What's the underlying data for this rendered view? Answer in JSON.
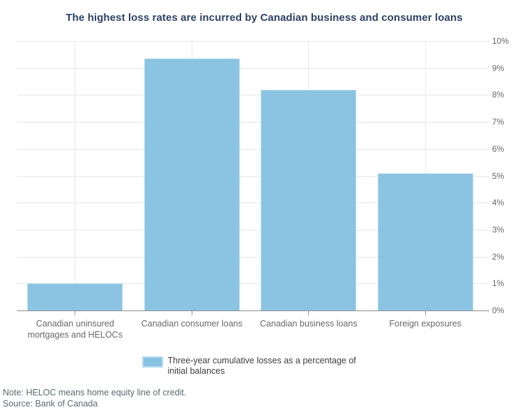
{
  "title": "The highest loss rates are incurred by Canadian business and consumer loans",
  "chart_data": {
    "type": "bar",
    "title": "The highest loss rates are incurred by Canadian business and consumer loans",
    "categories": [
      "Canadian uninsured mortgages and HELOCs",
      "Canadian consumer loans",
      "Canadian business loans",
      "Foreign exposures"
    ],
    "series": [
      {
        "name": "Three-year cumulative losses as a percentage of initial balances",
        "values": [
          1.0,
          9.35,
          8.2,
          5.1
        ]
      }
    ],
    "xlabel": "",
    "ylabel": "",
    "ylim": [
      0,
      10
    ],
    "ytick_step": 1,
    "ytick_suffix": "%",
    "yaxis_side": "right",
    "grid": true,
    "legend_position": "bottom"
  },
  "legend": {
    "label": "Three-year cumulative losses as a percentage of initial balances"
  },
  "footer": {
    "note": "Note: HELOC means home equity line of credit.",
    "source": "Source: Bank of Canada"
  },
  "colors": {
    "bar_fill": "#87c3e2",
    "bar_border": "#b5daee",
    "title": "#2e4265",
    "gridline": "#e6e6e6",
    "axis_line": "#8c8c8c",
    "axis_label": "#676767",
    "footer_text": "#5c6873"
  }
}
